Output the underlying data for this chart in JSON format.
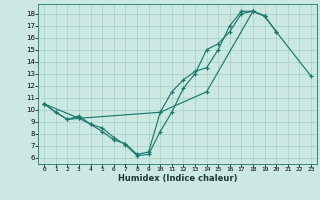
{
  "xlabel": "Humidex (Indice chaleur)",
  "bg_color": "#cce8e3",
  "grid_color": "#aad4cc",
  "line_color": "#1a7a6e",
  "xlim": [
    -0.5,
    23.5
  ],
  "ylim": [
    5.5,
    18.8
  ],
  "yticks": [
    6,
    7,
    8,
    9,
    10,
    11,
    12,
    13,
    14,
    15,
    16,
    17,
    18
  ],
  "xticks": [
    0,
    1,
    2,
    3,
    4,
    5,
    6,
    7,
    8,
    9,
    10,
    11,
    12,
    13,
    14,
    15,
    16,
    17,
    18,
    19,
    20,
    21,
    22,
    23
  ],
  "curve1_x": [
    0,
    1,
    2,
    3,
    4,
    5,
    6,
    7,
    8,
    9,
    10,
    11,
    12,
    13,
    14,
    15,
    16,
    17,
    18,
    19,
    20
  ],
  "curve1_y": [
    10.5,
    9.8,
    9.2,
    9.3,
    8.8,
    8.5,
    7.7,
    7.1,
    6.2,
    6.3,
    8.2,
    9.8,
    11.8,
    13.0,
    15.0,
    15.5,
    16.5,
    18.0,
    18.2,
    17.8,
    16.5
  ],
  "curve2_x": [
    0,
    1,
    2,
    3,
    4,
    5,
    6,
    7,
    8,
    9,
    10,
    11,
    12,
    13,
    14,
    15,
    16,
    17,
    18,
    19
  ],
  "curve2_y": [
    10.5,
    9.8,
    9.2,
    9.5,
    8.8,
    8.2,
    7.5,
    7.2,
    6.3,
    6.5,
    9.8,
    11.5,
    12.5,
    13.2,
    13.5,
    15.0,
    17.0,
    18.2,
    18.2,
    17.8
  ],
  "curve3_x": [
    0,
    3,
    10,
    14,
    18,
    19,
    20,
    23
  ],
  "curve3_y": [
    10.5,
    9.3,
    9.8,
    11.5,
    18.2,
    17.8,
    16.5,
    12.8
  ]
}
